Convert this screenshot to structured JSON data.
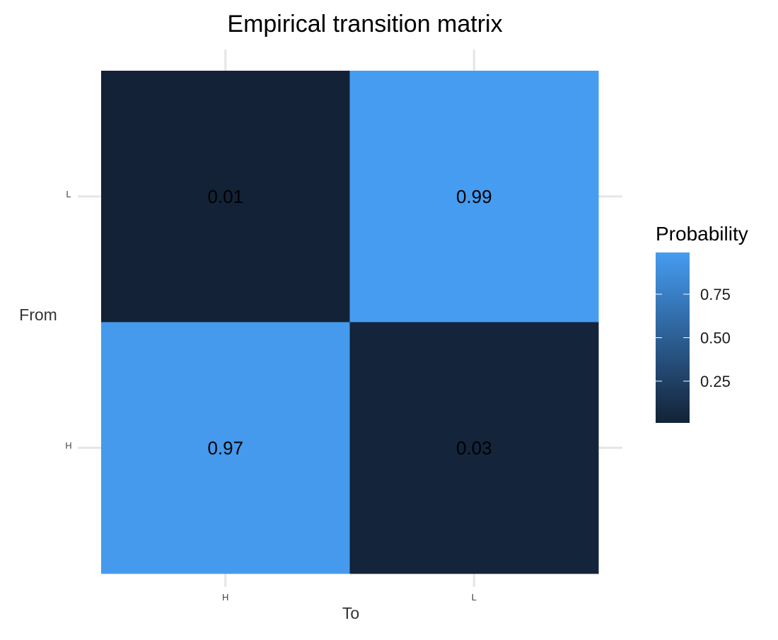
{
  "chart_data": {
    "type": "heatmap",
    "title": "Empirical transition matrix",
    "xlabel": "To",
    "ylabel": "From",
    "x_categories": [
      "H",
      "L"
    ],
    "y_categories": [
      "H",
      "L"
    ],
    "cells": [
      {
        "from": "L",
        "to": "H",
        "value": 0.01,
        "label": "0.01"
      },
      {
        "from": "L",
        "to": "L",
        "value": 0.99,
        "label": "0.99"
      },
      {
        "from": "H",
        "to": "H",
        "value": 0.97,
        "label": "0.97"
      },
      {
        "from": "H",
        "to": "L",
        "value": 0.03,
        "label": "0.03"
      }
    ],
    "legend": {
      "title": "Probability",
      "position": "right",
      "ticks": [
        0.25,
        0.5,
        0.75
      ],
      "tick_labels": [
        "0.25",
        "0.50",
        "0.75"
      ],
      "range": [
        0.01,
        0.99
      ],
      "color_low": "#132237",
      "color_high": "#469cf1"
    },
    "grid": true,
    "grid_color": "#e5e5e5"
  }
}
